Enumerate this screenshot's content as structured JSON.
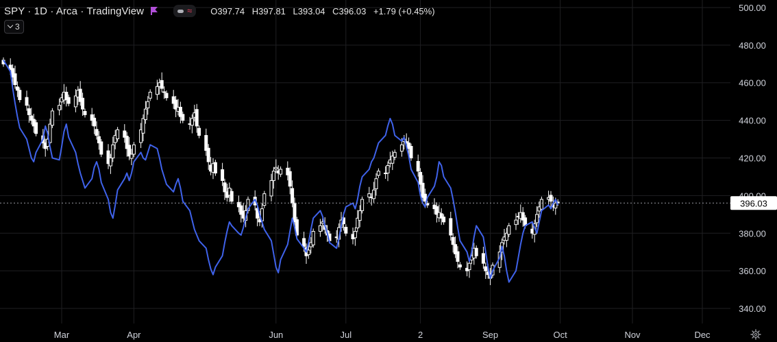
{
  "header": {
    "symbol_info": "SPY · 1D · Arca · TradingView",
    "ohlc": {
      "open": "O397.74",
      "high": "H397.81",
      "low": "L393.04",
      "close": "C396.03",
      "change": "+1.79 (+0.45%)"
    },
    "indicator_count": "3",
    "icons": [
      "flag-icon",
      "eye-icon",
      "wave-icon",
      "chevron-down-icon",
      "gear-icon"
    ]
  },
  "colors": {
    "background": "#000000",
    "grid": "#1f1f22",
    "candle_up": "#ffffff",
    "candle_down": "#ffffff",
    "compare_line": "#3f62ea",
    "price_label_bg": "#ffffff",
    "flag": "#b14fd8",
    "wave": "#e03e5b"
  },
  "price_scale": {
    "ticks": [
      "500.00",
      "480.00",
      "460.00",
      "440.00",
      "420.00",
      "400.00",
      "380.00",
      "360.00",
      "340.00"
    ],
    "last_price": "396.03"
  },
  "time_scale": {
    "ticks": [
      "Mar",
      "Apr",
      "Jun",
      "Jul",
      "2",
      "Sep",
      "Oct",
      "Nov",
      "Dec"
    ]
  },
  "chart_data": {
    "type": "candlestick",
    "ylim": [
      332,
      504
    ],
    "grid": true,
    "candles": {
      "start": "2022-02-04",
      "closes": [
        470,
        467,
        463,
        459,
        456,
        451,
        448,
        443,
        440,
        437,
        433,
        428,
        425,
        430,
        438,
        445,
        448,
        452,
        455,
        451,
        449,
        453,
        456,
        450,
        446,
        443,
        440,
        437,
        432,
        428,
        422,
        417,
        420,
        427,
        432,
        435,
        431,
        425,
        421,
        422,
        427,
        435,
        441,
        446,
        450,
        455,
        458,
        460,
        457,
        455,
        452,
        449,
        446,
        447,
        442,
        440,
        438,
        441,
        444,
        437,
        432,
        424,
        418,
        413,
        417,
        412,
        408,
        402,
        399,
        404,
        397,
        394,
        390,
        388,
        392,
        398,
        395,
        388,
        386,
        393,
        401,
        408,
        413,
        415,
        412,
        414,
        411,
        405,
        396,
        386,
        379,
        373,
        368,
        371,
        375,
        381,
        384,
        386,
        382,
        379,
        376,
        378,
        383,
        387,
        385,
        380,
        377,
        381,
        388,
        392,
        398,
        401,
        399,
        403,
        409,
        413,
        412,
        416,
        419,
        421,
        423,
        427,
        430,
        428,
        425,
        420,
        413,
        406,
        399,
        397,
        395,
        393,
        390,
        391,
        388,
        386,
        379,
        374,
        369,
        365,
        362,
        360,
        364,
        368,
        372,
        368,
        364,
        360,
        358,
        356,
        363,
        370,
        375,
        378,
        380,
        384,
        387,
        389,
        391,
        387,
        384,
        380,
        385,
        390,
        394,
        398,
        399,
        397,
        394,
        396,
        396.03
      ]
    },
    "compare_series": {
      "start": "2022-02-04",
      "values": [
        472,
        466,
        457,
        449,
        442,
        436,
        430,
        425,
        420,
        418,
        423,
        430,
        437,
        433,
        426,
        420,
        419,
        426,
        434,
        438,
        431,
        423,
        417,
        412,
        408,
        404,
        409,
        415,
        418,
        414,
        407,
        398,
        391,
        388,
        395,
        403,
        409,
        412,
        408,
        412,
        418,
        423,
        420,
        419,
        423,
        427,
        425,
        420,
        414,
        410,
        406,
        402,
        406,
        409,
        404,
        397,
        392,
        387,
        382,
        379,
        376,
        372,
        366,
        361,
        358,
        362,
        368,
        375,
        381,
        386,
        384,
        380,
        379,
        383,
        388,
        393,
        398,
        395,
        390,
        386,
        382,
        376,
        369,
        362,
        359,
        366,
        374,
        381,
        388,
        383,
        377,
        372,
        370,
        375,
        382,
        388,
        392,
        389,
        384,
        380,
        375,
        372,
        377,
        384,
        390,
        394,
        396,
        393,
        398,
        405,
        410,
        414,
        418,
        420,
        424,
        428,
        432,
        437,
        441,
        438,
        432,
        429,
        431,
        426,
        421,
        414,
        407,
        400,
        396,
        394,
        399,
        405,
        410,
        418,
        416,
        410,
        404,
        398,
        391,
        383,
        376,
        370,
        365,
        370,
        378,
        384,
        378,
        370,
        362,
        356,
        360,
        367,
        373,
        368,
        360,
        354,
        360,
        367,
        374,
        380,
        384,
        386,
        383,
        380,
        386,
        392,
        395,
        393,
        396,
        398,
        395
      ]
    }
  }
}
